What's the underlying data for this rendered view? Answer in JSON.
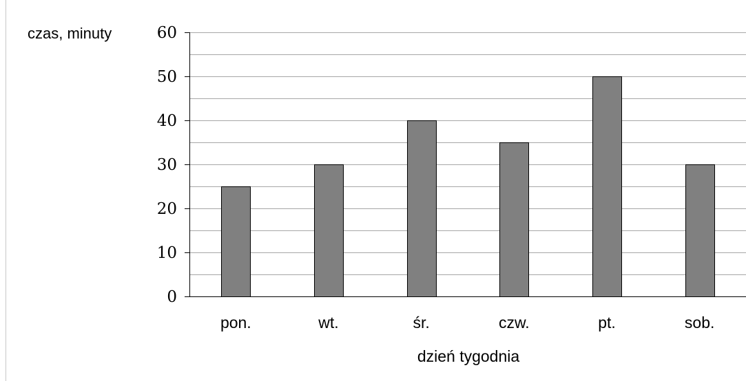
{
  "chart_data": {
    "type": "bar",
    "categories": [
      "pon.",
      "wt.",
      "śr.",
      "czw.",
      "pt.",
      "sob."
    ],
    "values": [
      25,
      30,
      40,
      35,
      50,
      30
    ],
    "title": "",
    "xlabel": "dzień tygodnia",
    "ylabel": "czas, minuty",
    "ylim": [
      0,
      60
    ],
    "y_ticks": [
      "0",
      "10",
      "20",
      "30",
      "40",
      "50",
      "60"
    ],
    "minor_grid_step": 5,
    "grid": true,
    "legend": "none",
    "colors": {
      "bar_fill": "#808080",
      "bar_stroke": "#000000",
      "grid": "#a6a6a6",
      "axis": "#000000"
    }
  }
}
